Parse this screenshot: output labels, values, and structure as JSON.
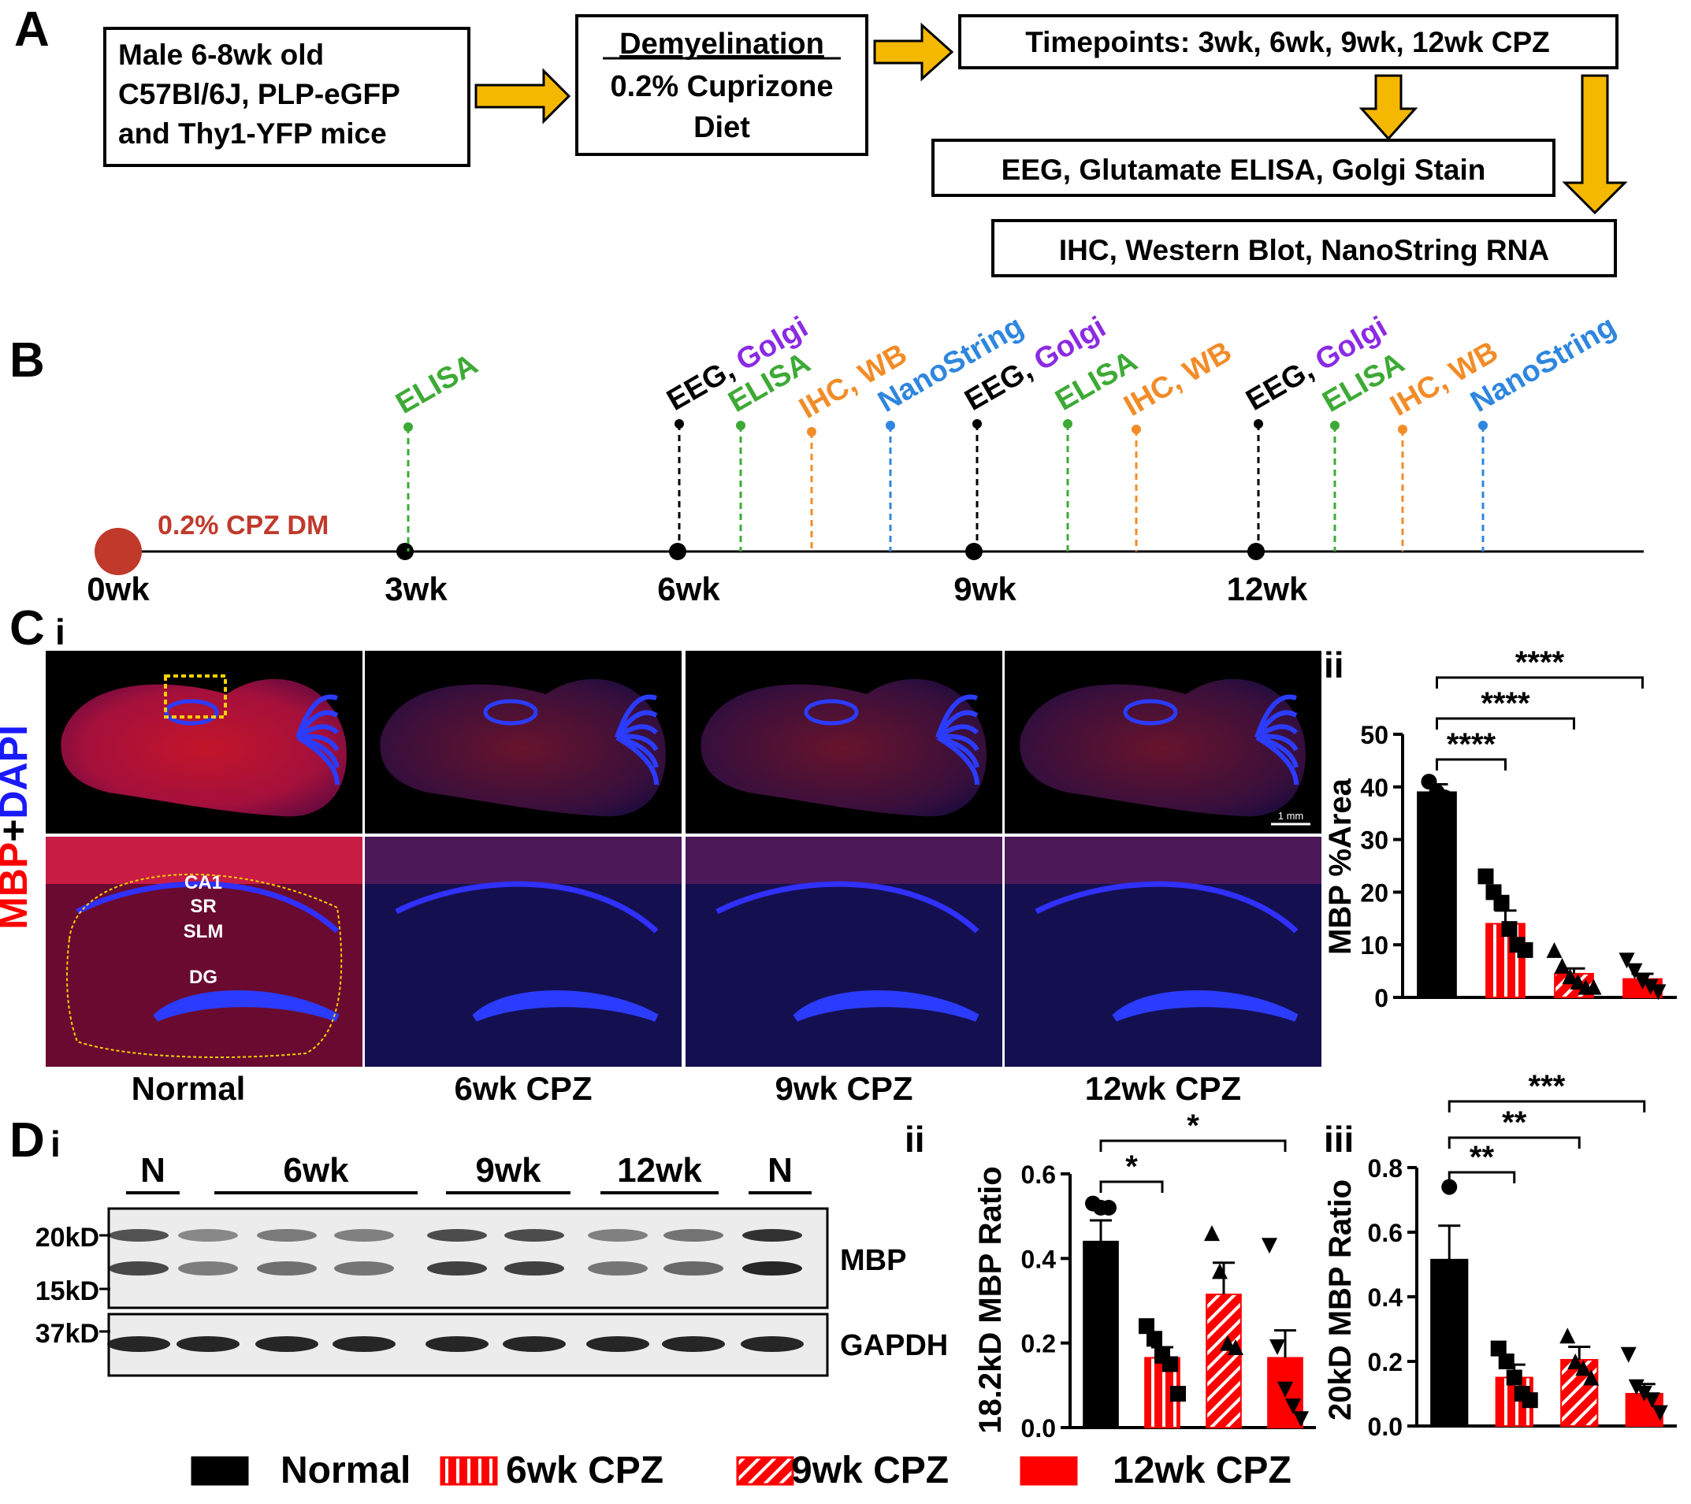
{
  "panel_labels": {
    "A": "A",
    "B": "B",
    "C": "C",
    "Ci": "i",
    "Cii": "ii",
    "D": "D",
    "Di": "i",
    "Dii": "ii",
    "Diii": "iii"
  },
  "flow": {
    "box1": [
      "Male 6-8wk old",
      "C57Bl/6J, PLP-eGFP",
      "and Thy1-YFP mice"
    ],
    "box2_title": "Demyelination",
    "box2": [
      "0.2% Cuprizone",
      "Diet"
    ],
    "box3": "Timepoints: 3wk, 6wk, 9wk, 12wk CPZ",
    "box4": "EEG, Glutamate ELISA, Golgi Stain",
    "box5": "IHC, Western Blot, NanoString RNA"
  },
  "timeline": {
    "start_label": "0.2% CPZ DM",
    "ticks": [
      "0wk",
      "3wk",
      "6wk",
      "9wk",
      "12wk"
    ],
    "events": {
      "elisa": "ELISA",
      "eeg": "EEG,",
      "golgi": "Golgi",
      "ihc_wb": "IHC, WB",
      "nanostring": "NanoString"
    },
    "colors": {
      "eeg": "#000000",
      "golgi": "#8b2be2",
      "elisa": "#3daa35",
      "ihc": "#f28c28",
      "nano": "#2e86de",
      "dm": "#c0392b"
    }
  },
  "microscopy": {
    "ylabel_mbp": "MBP",
    "ylabel_plus": "+",
    "ylabel_dapi": "DAPI",
    "regions": [
      "CA1",
      "SR",
      "SLM",
      "DG"
    ],
    "scalebar": "1 mm",
    "columns": [
      "Normal",
      "6wk CPZ",
      "9wk CPZ",
      "12wk CPZ"
    ]
  },
  "western": {
    "group_labels": [
      "N",
      "6wk",
      "9wk",
      "12wk",
      "N"
    ],
    "mw": [
      "20kD",
      "15kD",
      "37kD"
    ],
    "proteins": [
      "MBP",
      "GAPDH"
    ]
  },
  "legend": [
    "Normal",
    "6wk CPZ",
    "9wk CPZ",
    "12wk CPZ"
  ],
  "chart_data": [
    {
      "type": "bar",
      "panel": "Cii",
      "ylabel": "MBP %Area",
      "ylim": [
        0,
        50
      ],
      "yticks": [
        0,
        10,
        20,
        30,
        40,
        50
      ],
      "categories": [
        "Normal",
        "6wk CPZ",
        "9wk CPZ",
        "12wk CPZ"
      ],
      "values": [
        39,
        14,
        4.5,
        3.5
      ],
      "errors": [
        1.5,
        2.5,
        1,
        1
      ],
      "points": [
        [
          41,
          39,
          38
        ],
        [
          23,
          20,
          18,
          13,
          10,
          9
        ],
        [
          9,
          6,
          4,
          3,
          2,
          2
        ],
        [
          7,
          5,
          3,
          2,
          1
        ]
      ],
      "markers": [
        "circle",
        "square",
        "triangle",
        "triangle-down"
      ],
      "significance": [
        {
          "from": 0,
          "to": 1,
          "label": "****"
        },
        {
          "from": 0,
          "to": 2,
          "label": "****"
        },
        {
          "from": 0,
          "to": 3,
          "label": "****"
        }
      ]
    },
    {
      "type": "bar",
      "panel": "Dii",
      "ylabel": "18.2kD MBP Ratio",
      "ylim": [
        0,
        0.6
      ],
      "yticks": [
        0.0,
        0.2,
        0.4,
        0.6
      ],
      "categories": [
        "Normal",
        "6wk CPZ",
        "9wk CPZ",
        "12wk CPZ"
      ],
      "values": [
        0.44,
        0.165,
        0.315,
        0.165
      ],
      "errors": [
        0.05,
        0.025,
        0.075,
        0.065
      ],
      "points": [
        [
          0.53,
          0.52,
          0.52
        ],
        [
          0.24,
          0.21,
          0.17,
          0.15,
          0.08
        ],
        [
          0.46,
          0.37,
          0.2,
          0.19
        ],
        [
          0.43,
          0.19,
          0.09,
          0.05,
          0.02
        ]
      ],
      "markers": [
        "circle",
        "square",
        "triangle",
        "triangle-down"
      ],
      "significance": [
        {
          "from": 0,
          "to": 1,
          "label": "*"
        },
        {
          "from": 0,
          "to": 3,
          "label": "*"
        }
      ]
    },
    {
      "type": "bar",
      "panel": "Diii",
      "ylabel": "20kD MBP Ratio",
      "ylim": [
        0,
        0.8
      ],
      "yticks": [
        0.0,
        0.2,
        0.4,
        0.6,
        0.8
      ],
      "categories": [
        "Normal",
        "6wk CPZ",
        "9wk CPZ",
        "12wk CPZ"
      ],
      "values": [
        0.515,
        0.15,
        0.205,
        0.1
      ],
      "errors": [
        0.105,
        0.04,
        0.04,
        0.03
      ],
      "points": [
        [
          0.74
        ],
        [
          0.24,
          0.2,
          0.15,
          0.1,
          0.08
        ],
        [
          0.28,
          0.2,
          0.18,
          0.15
        ],
        [
          0.22,
          0.12,
          0.1,
          0.08,
          0.04
        ]
      ],
      "markers": [
        "circle",
        "square",
        "triangle",
        "triangle-down"
      ],
      "significance": [
        {
          "from": 0,
          "to": 1,
          "label": "**"
        },
        {
          "from": 0,
          "to": 2,
          "label": "**"
        },
        {
          "from": 0,
          "to": 3,
          "label": "***"
        }
      ]
    }
  ]
}
